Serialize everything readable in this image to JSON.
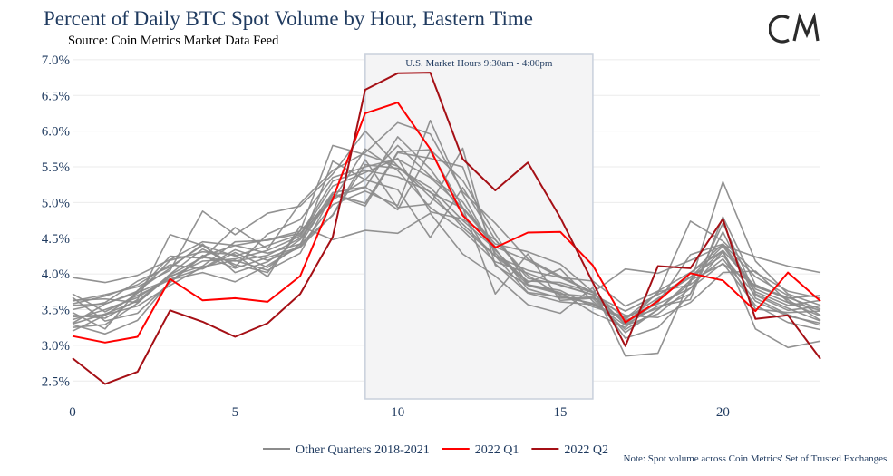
{
  "title": "Percent of Daily BTC Spot Volume by Hour, Eastern Time",
  "subtitle": "Source: Coin Metrics Market Data Feed",
  "note": "Note: Spot volume across Coin Metrics' Set of Trusted Exchanges.",
  "logo_text": "CM",
  "colors": {
    "title": "#1f3a5f",
    "other": "#8c8c8c",
    "q1": "#ff0000",
    "q2": "#a50f15",
    "band_fill": "#f4f4f5",
    "band_stroke": "#c9d0dc",
    "grid": "#ebebeb",
    "tick": "#1f3a5f"
  },
  "chart_data": {
    "type": "line",
    "title": "Percent of Daily BTC Spot Volume by Hour, Eastern Time",
    "subtitle": "Source: Coin Metrics Market Data Feed",
    "x": [
      0,
      1,
      2,
      3,
      4,
      5,
      6,
      7,
      8,
      9,
      10,
      11,
      12,
      13,
      14,
      15,
      16,
      17,
      18,
      19,
      20,
      21,
      22,
      23
    ],
    "xlim": [
      0,
      23
    ],
    "ylim": [
      2.25,
      7.1
    ],
    "x_ticks": [
      0,
      5,
      10,
      15,
      20
    ],
    "y_ticks": [
      2.5,
      3.0,
      3.5,
      4.0,
      4.5,
      5.0,
      5.5,
      6.0,
      6.5,
      7.0
    ],
    "y_tick_labels": [
      "2.5%",
      "3.0%",
      "3.5%",
      "4.0%",
      "4.5%",
      "5.0%",
      "5.5%",
      "6.0%",
      "6.5%",
      "7.0%"
    ],
    "grid": "horizontal",
    "legend": {
      "placement": "bottom-center"
    },
    "band": {
      "x0": 9,
      "x1": 16,
      "label": "U.S. Market Hours 9:30am - 4:00pm"
    },
    "series": [
      {
        "name": "2022 Q1",
        "color": "#ff0000",
        "values": [
          3.13,
          3.04,
          3.12,
          3.93,
          3.63,
          3.66,
          3.61,
          3.97,
          5.05,
          6.25,
          6.4,
          5.75,
          4.82,
          4.37,
          4.58,
          4.59,
          4.12,
          3.32,
          3.62,
          4.01,
          3.91,
          3.48,
          4.02,
          3.62
        ]
      },
      {
        "name": "2022 Q2",
        "color": "#a50f15",
        "values": [
          2.82,
          2.46,
          2.63,
          3.49,
          3.33,
          3.12,
          3.31,
          3.72,
          4.52,
          6.58,
          6.81,
          6.82,
          5.61,
          5.17,
          5.56,
          4.79,
          3.88,
          2.99,
          4.11,
          4.08,
          4.77,
          3.37,
          3.42,
          2.81
        ]
      },
      {
        "name": "Other Quarters 2018-2021",
        "color": "#8c8c8c",
        "values": [
          3.95,
          3.88,
          3.98,
          4.2,
          4.45,
          4.4,
          4.48,
          4.6,
          5.8,
          5.67,
          5.51,
          5.14,
          4.92,
          4.38,
          4.19,
          3.95,
          3.74,
          4.07,
          4.01,
          4.19,
          4.4,
          4.24,
          4.11,
          4.02
        ]
      },
      {
        "values": [
          3.62,
          3.71,
          3.82,
          4.05,
          4.88,
          4.55,
          4.85,
          4.95,
          5.4,
          6.0,
          5.51,
          5.08,
          4.7,
          4.25,
          4.05,
          3.95,
          3.9,
          3.55,
          3.76,
          4.02,
          4.33,
          3.82,
          3.66,
          3.7
        ]
      },
      {
        "values": [
          3.42,
          3.38,
          3.64,
          4.55,
          4.4,
          4.1,
          4.56,
          4.76,
          5.35,
          5.5,
          5.61,
          5.35,
          4.93,
          4.42,
          4.31,
          4.14,
          3.75,
          3.29,
          3.75,
          3.85,
          4.21,
          3.62,
          3.41,
          3.31
        ]
      },
      {
        "values": [
          3.31,
          3.58,
          3.76,
          4.25,
          4.22,
          4.65,
          4.35,
          4.99,
          5.45,
          5.7,
          6.12,
          5.96,
          5.15,
          4.71,
          4.21,
          3.97,
          3.74,
          3.29,
          3.55,
          3.64,
          4.8,
          3.85,
          3.64,
          3.35
        ]
      },
      {
        "values": [
          3.67,
          3.34,
          3.45,
          3.88,
          4.25,
          4.4,
          4.29,
          4.42,
          4.82,
          5.53,
          5.48,
          5.21,
          4.75,
          4.35,
          3.79,
          3.66,
          3.67,
          3.42,
          3.39,
          3.6,
          4.02,
          4.04,
          3.61,
          3.49
        ]
      },
      {
        "values": [
          3.25,
          3.29,
          3.59,
          4.0,
          4.35,
          4.13,
          4.02,
          4.61,
          5.04,
          5.32,
          5.8,
          5.37,
          5.01,
          4.33,
          3.88,
          4.07,
          3.62,
          3.22,
          3.5,
          3.87,
          5.29,
          4.18,
          3.72,
          3.56
        ]
      },
      {
        "values": [
          3.46,
          3.23,
          3.77,
          4.08,
          4.42,
          4.02,
          4.17,
          4.48,
          5.08,
          5.21,
          5.92,
          5.47,
          4.85,
          4.14,
          3.73,
          3.61,
          3.57,
          3.35,
          3.52,
          3.72,
          4.71,
          3.72,
          3.52,
          3.34
        ]
      },
      {
        "values": [
          3.36,
          3.5,
          3.67,
          3.96,
          4.18,
          4.21,
          4.33,
          4.53,
          5.23,
          5.42,
          5.62,
          4.87,
          4.77,
          4.48,
          3.94,
          3.85,
          3.71,
          3.1,
          3.25,
          3.72,
          4.59,
          3.66,
          3.43,
          3.28
        ]
      },
      {
        "values": [
          3.58,
          3.69,
          3.85,
          4.13,
          4.07,
          4.3,
          4.09,
          4.42,
          5.12,
          4.99,
          5.71,
          5.74,
          5.31,
          4.56,
          3.85,
          3.74,
          3.46,
          3.25,
          3.64,
          4.01,
          4.42,
          3.79,
          3.6,
          3.41
        ]
      },
      {
        "values": [
          3.29,
          3.16,
          3.35,
          3.89,
          4.26,
          4.08,
          4.23,
          4.38,
          4.97,
          5.16,
          4.96,
          6.15,
          5.12,
          4.29,
          3.85,
          3.77,
          3.54,
          3.4,
          3.58,
          3.8,
          4.15,
          3.56,
          3.32,
          3.22
        ]
      },
      {
        "values": [
          3.63,
          3.65,
          3.6,
          3.97,
          4.11,
          4.45,
          4.47,
          4.57,
          5.03,
          5.75,
          5.45,
          4.93,
          4.61,
          4.17,
          4.01,
          3.84,
          3.71,
          3.48,
          3.71,
          3.96,
          4.26,
          3.7,
          3.49,
          3.55
        ]
      },
      {
        "values": [
          3.72,
          3.47,
          3.7,
          3.92,
          4.02,
          3.89,
          4.12,
          4.39,
          5.58,
          5.32,
          5.18,
          4.51,
          5.21,
          4.48,
          3.98,
          3.7,
          3.58,
          3.37,
          3.66,
          3.95,
          4.39,
          3.75,
          3.56,
          3.63
        ]
      },
      {
        "values": [
          3.2,
          3.42,
          3.73,
          4.19,
          4.31,
          4.27,
          3.96,
          4.67,
          4.48,
          4.61,
          4.57,
          4.85,
          4.28,
          3.97,
          3.57,
          3.45,
          3.81,
          2.85,
          2.89,
          3.92,
          4.33,
          3.23,
          2.97,
          3.06
        ]
      },
      {
        "values": [
          3.5,
          3.6,
          3.9,
          4.1,
          4.4,
          4.25,
          4.4,
          4.55,
          5.3,
          5.45,
          5.36,
          5.15,
          4.65,
          4.25,
          3.9,
          3.88,
          3.74,
          3.38,
          3.73,
          4.74,
          4.46,
          4.02,
          3.76,
          3.66
        ]
      },
      {
        "values": [
          3.4,
          3.43,
          3.55,
          3.84,
          4.1,
          4.19,
          4.05,
          4.29,
          5.12,
          4.95,
          5.7,
          5.62,
          5.5,
          4.25,
          3.74,
          3.68,
          3.59,
          3.28,
          3.44,
          3.8,
          4.31,
          3.51,
          3.46,
          3.48
        ]
      },
      {
        "values": [
          3.3,
          3.44,
          3.62,
          3.99,
          4.23,
          4.18,
          4.26,
          4.5,
          5.14,
          5.22,
          4.9,
          5.72,
          4.93,
          3.72,
          4.28,
          3.63,
          3.66,
          3.18,
          3.5,
          3.91,
          4.14,
          3.84,
          3.67,
          3.51
        ]
      },
      {
        "values": [
          3.56,
          3.58,
          3.74,
          3.93,
          4.08,
          4.34,
          4.19,
          4.37,
          4.83,
          5.6,
          4.93,
          4.98,
          5.76,
          4.12,
          3.84,
          3.72,
          3.68,
          3.31,
          3.6,
          4.27,
          4.42,
          3.96,
          3.7,
          3.42
        ]
      }
    ]
  },
  "legend_entries": [
    {
      "label": "Other Quarters 2018-2021",
      "color": "#8c8c8c"
    },
    {
      "label": "2022 Q1",
      "color": "#ff0000"
    },
    {
      "label": "2022 Q2",
      "color": "#a50f15"
    }
  ]
}
